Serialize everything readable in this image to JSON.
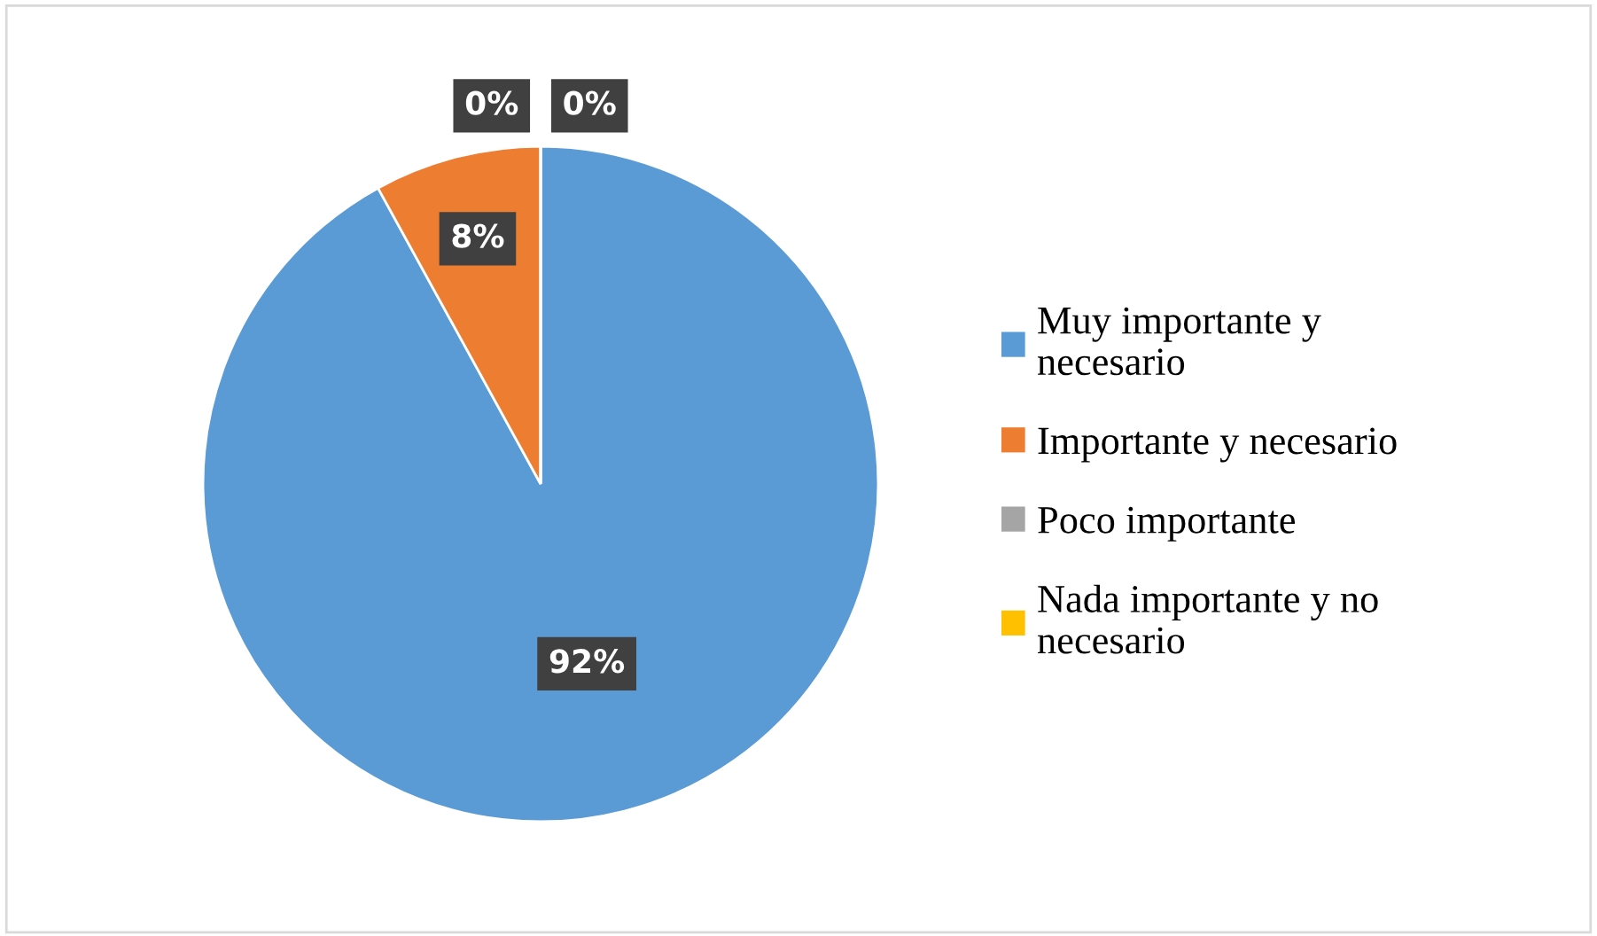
{
  "chart_data": {
    "type": "pie",
    "categories": [
      "Muy importante y necesario",
      "Importante y necesario",
      "Poco importante",
      "Nada importante y no necesario"
    ],
    "values": [
      92,
      8,
      0,
      0
    ],
    "colors": [
      "#5b9bd5",
      "#ed7d31",
      "#a5a5a5",
      "#ffc000"
    ],
    "value_labels": [
      "92%",
      "8%",
      "0%",
      "0%"
    ],
    "legend": "right"
  }
}
